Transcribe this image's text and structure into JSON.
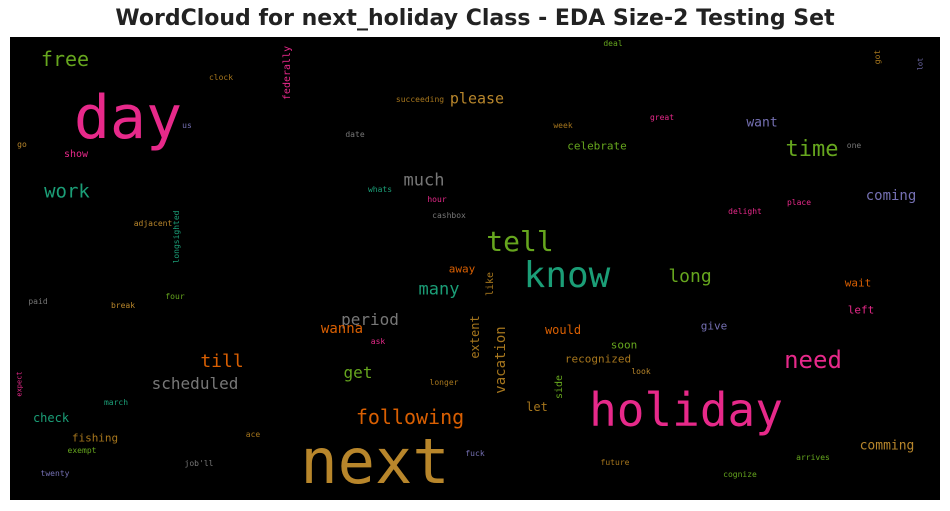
{
  "chart_data": {
    "type": "wordcloud",
    "title": "WordCloud for next_holiday Class - EDA Size-2 Testing Set",
    "background": "#000000",
    "palette": {
      "pink": "#e7298a",
      "gold": "#b8862b",
      "teal": "#1b9e77",
      "green": "#66a61e",
      "orange": "#d95f02",
      "gray": "#777777",
      "purple": "#7570b3",
      "olive": "#a6761d"
    },
    "words": [
      {
        "text": "next",
        "color": "gold"
      },
      {
        "text": "holiday",
        "color": "pink"
      },
      {
        "text": "day",
        "color": "pink"
      },
      {
        "text": "know",
        "color": "teal"
      },
      {
        "text": "tell",
        "color": "green"
      },
      {
        "text": "time",
        "color": "green"
      },
      {
        "text": "need",
        "color": "pink"
      },
      {
        "text": "following",
        "color": "orange"
      },
      {
        "text": "free",
        "color": "green"
      },
      {
        "text": "work",
        "color": "teal"
      },
      {
        "text": "much",
        "color": "gray"
      },
      {
        "text": "long",
        "color": "green"
      },
      {
        "text": "many",
        "color": "teal"
      },
      {
        "text": "till",
        "color": "orange"
      },
      {
        "text": "scheduled",
        "color": "gray"
      },
      {
        "text": "vacation",
        "color": "olive"
      },
      {
        "text": "period",
        "color": "gray"
      },
      {
        "text": "please",
        "color": "gold"
      },
      {
        "text": "get",
        "color": "green"
      },
      {
        "text": "wanna",
        "color": "orange"
      },
      {
        "text": "want",
        "color": "purple"
      },
      {
        "text": "coming",
        "color": "purple"
      },
      {
        "text": "comming",
        "color": "gold"
      },
      {
        "text": "extent",
        "color": "olive"
      },
      {
        "text": "celebrate",
        "color": "green"
      },
      {
        "text": "would",
        "color": "orange"
      },
      {
        "text": "recognized",
        "color": "olive"
      },
      {
        "text": "let",
        "color": "olive"
      },
      {
        "text": "wait",
        "color": "orange"
      },
      {
        "text": "left",
        "color": "pink"
      },
      {
        "text": "check",
        "color": "teal"
      },
      {
        "text": "fishing",
        "color": "olive"
      },
      {
        "text": "federally",
        "color": "pink"
      },
      {
        "text": "like",
        "color": "olive"
      },
      {
        "text": "away",
        "color": "orange"
      },
      {
        "text": "soon",
        "color": "green"
      },
      {
        "text": "give",
        "color": "purple"
      },
      {
        "text": "side",
        "color": "green"
      },
      {
        "text": "show",
        "color": "pink"
      },
      {
        "text": "longsighted",
        "color": "teal"
      },
      {
        "text": "succeeding",
        "color": "olive"
      },
      {
        "text": "clock",
        "color": "olive"
      },
      {
        "text": "deal",
        "color": "green"
      },
      {
        "text": "got",
        "color": "olive"
      },
      {
        "text": "lot",
        "color": "purple"
      },
      {
        "text": "us",
        "color": "purple"
      },
      {
        "text": "go",
        "color": "gold"
      },
      {
        "text": "date",
        "color": "gray"
      },
      {
        "text": "week",
        "color": "olive"
      },
      {
        "text": "great",
        "color": "pink"
      },
      {
        "text": "one",
        "color": "gray"
      },
      {
        "text": "whats",
        "color": "teal"
      },
      {
        "text": "hour",
        "color": "pink"
      },
      {
        "text": "cashbox",
        "color": "gray"
      },
      {
        "text": "adjacent",
        "color": "gold"
      },
      {
        "text": "delight",
        "color": "pink"
      },
      {
        "text": "place",
        "color": "pink"
      },
      {
        "text": "paid",
        "color": "gray"
      },
      {
        "text": "break",
        "color": "gold"
      },
      {
        "text": "four",
        "color": "green"
      },
      {
        "text": "ask",
        "color": "pink"
      },
      {
        "text": "longer",
        "color": "olive"
      },
      {
        "text": "look",
        "color": "gold"
      },
      {
        "text": "expect",
        "color": "pink"
      },
      {
        "text": "march",
        "color": "teal"
      },
      {
        "text": "ace",
        "color": "olive"
      },
      {
        "text": "exempt",
        "color": "green"
      },
      {
        "text": "job'll",
        "color": "gray"
      },
      {
        "text": "fuck",
        "color": "purple"
      },
      {
        "text": "future",
        "color": "olive"
      },
      {
        "text": "arrives",
        "color": "green"
      },
      {
        "text": "cognize",
        "color": "green"
      },
      {
        "text": "twenty",
        "color": "purple"
      }
    ]
  }
}
